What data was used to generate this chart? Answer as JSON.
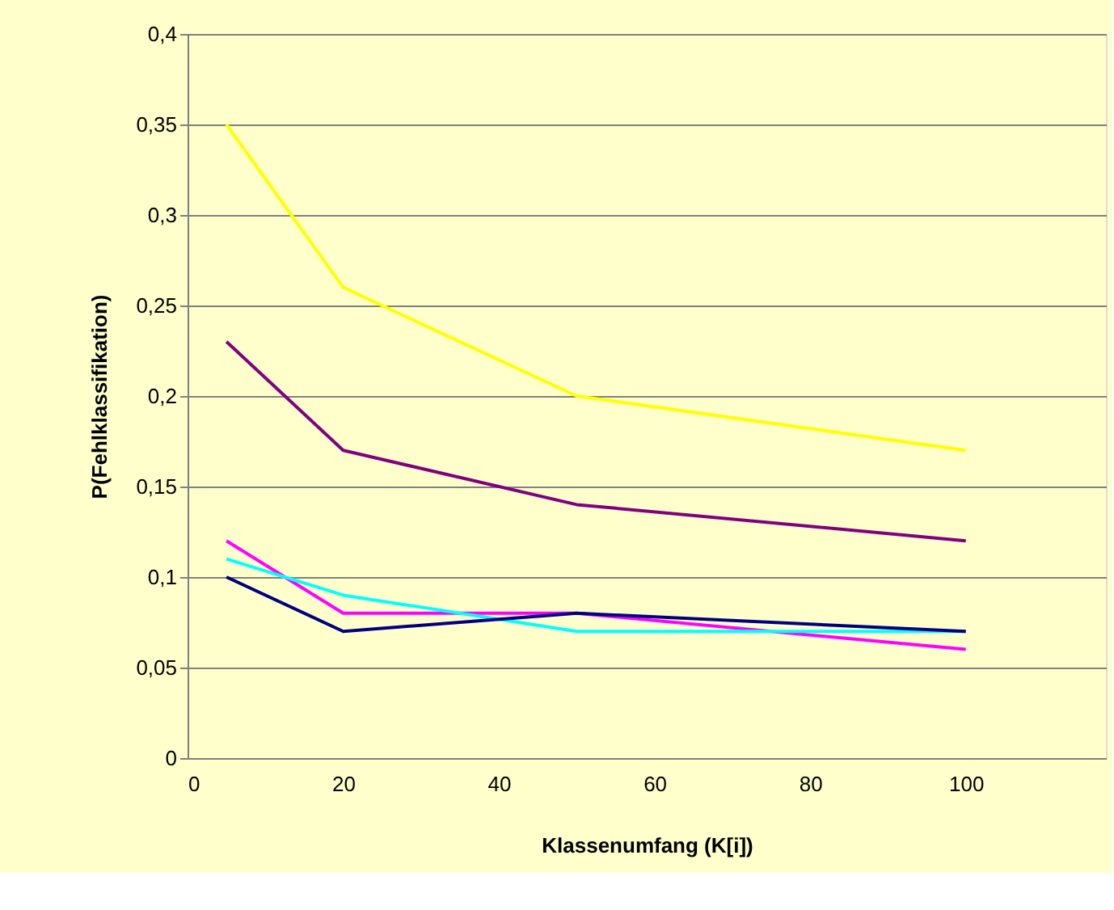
{
  "chart_data": {
    "type": "line",
    "xlabel": "Klassenumfang (K[i])",
    "ylabel": "P(Fehlklassifikation)",
    "x": [
      5,
      20,
      50,
      100
    ],
    "series": [
      {
        "color": "#ffff00",
        "values": [
          0.35,
          0.26,
          0.2,
          0.17
        ]
      },
      {
        "color": "#800080",
        "values": [
          0.23,
          0.17,
          0.14,
          0.12
        ]
      },
      {
        "color": "#ff00ff",
        "values": [
          0.12,
          0.08,
          0.08,
          0.06
        ]
      },
      {
        "color": "#00ffff",
        "values": [
          0.11,
          0.09,
          0.07,
          0.07
        ]
      },
      {
        "color": "#000080",
        "values": [
          0.1,
          0.07,
          0.08,
          0.07
        ]
      }
    ],
    "xlim": [
      0,
      118
    ],
    "xticks": [
      0,
      20,
      40,
      60,
      80,
      100
    ],
    "ylim": [
      0,
      0.4
    ],
    "yticks": [
      0,
      {
        "value": 0.05,
        "label": "0,05"
      },
      {
        "value": 0.1,
        "label": "0,1"
      },
      {
        "value": 0.15,
        "label": "0,15"
      },
      {
        "value": 0.2,
        "label": "0,2"
      },
      {
        "value": 0.25,
        "label": "0,25"
      },
      {
        "value": 0.3,
        "label": "0,3"
      },
      {
        "value": 0.35,
        "label": "0,35"
      },
      {
        "value": 0.4,
        "label": "0,4"
      }
    ],
    "grid": "y",
    "legend": false,
    "marker": "none",
    "line_style": "solid"
  }
}
